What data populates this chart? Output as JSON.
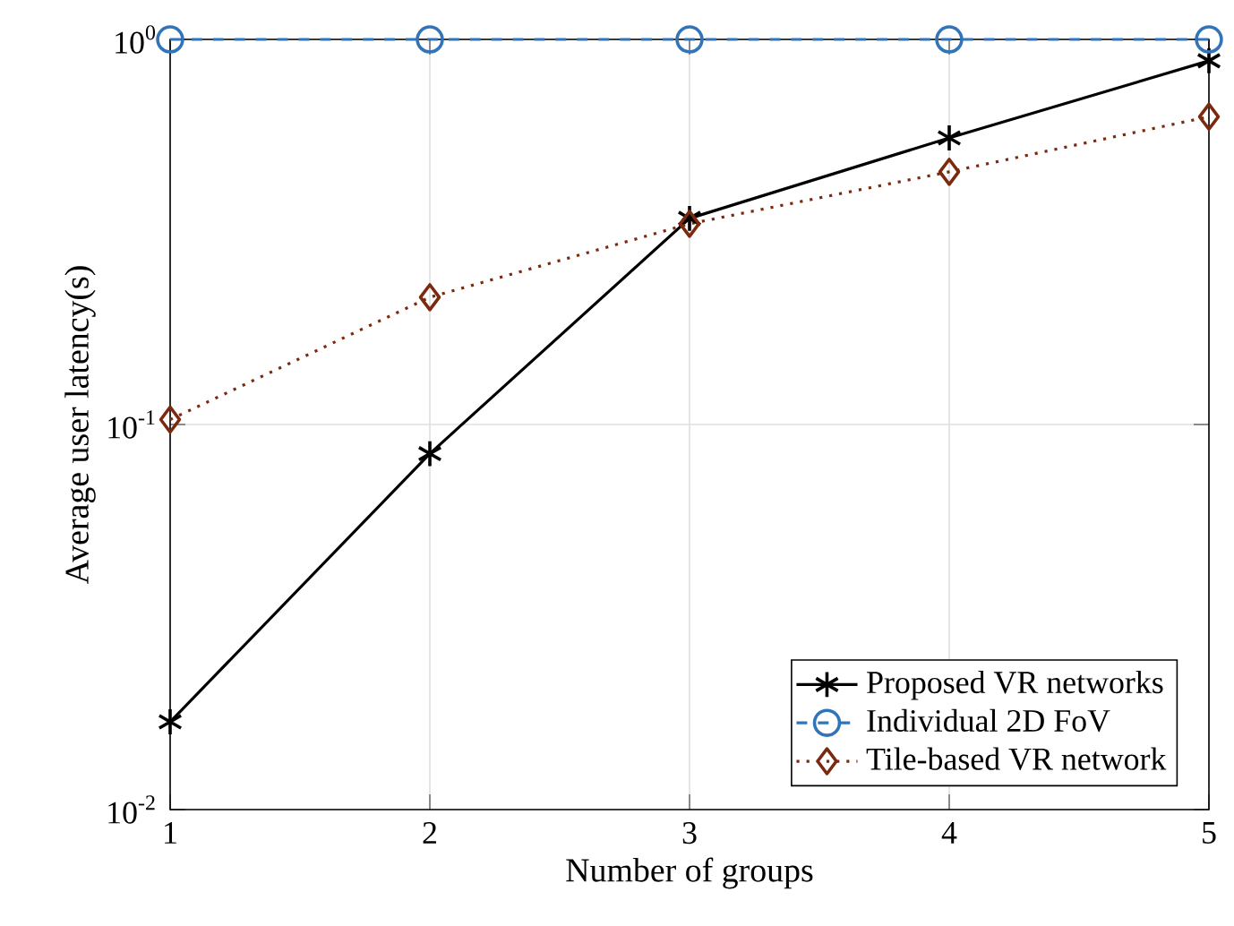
{
  "chart_data": {
    "type": "line",
    "xlabel": "Number of groups",
    "ylabel": "Average user latency(s)",
    "x": [
      1,
      2,
      3,
      4,
      5
    ],
    "xlim": [
      1,
      5
    ],
    "xticks": [
      1,
      2,
      3,
      4,
      5
    ],
    "ylim": [
      0.01,
      1
    ],
    "yticks": [
      {
        "value": 0.01,
        "label": "10$^{-2}$"
      },
      {
        "value": 0.1,
        "label": "10$^{-1}$"
      },
      {
        "value": 1,
        "label": "10$^{0}$"
      }
    ],
    "log": "y",
    "grid": true,
    "legend": "bottom right",
    "series": [
      {
        "name": "Proposed VR networks",
        "color": "#000000",
        "marker": "cross",
        "line_style": "solid",
        "values": [
          0.0169,
          0.084,
          0.343,
          0.555,
          0.88
        ]
      },
      {
        "name": "Individual 2D FoV",
        "color": "#3274b8",
        "marker": "circle",
        "line_style": "dashed",
        "values": [
          1,
          1,
          1,
          1,
          1
        ]
      },
      {
        "name": "Tile-based VR network",
        "color": "#7b2a0f",
        "marker": "diamond",
        "line_style": "dotted",
        "values": [
          0.103,
          0.214,
          0.332,
          0.453,
          0.63
        ]
      }
    ]
  }
}
